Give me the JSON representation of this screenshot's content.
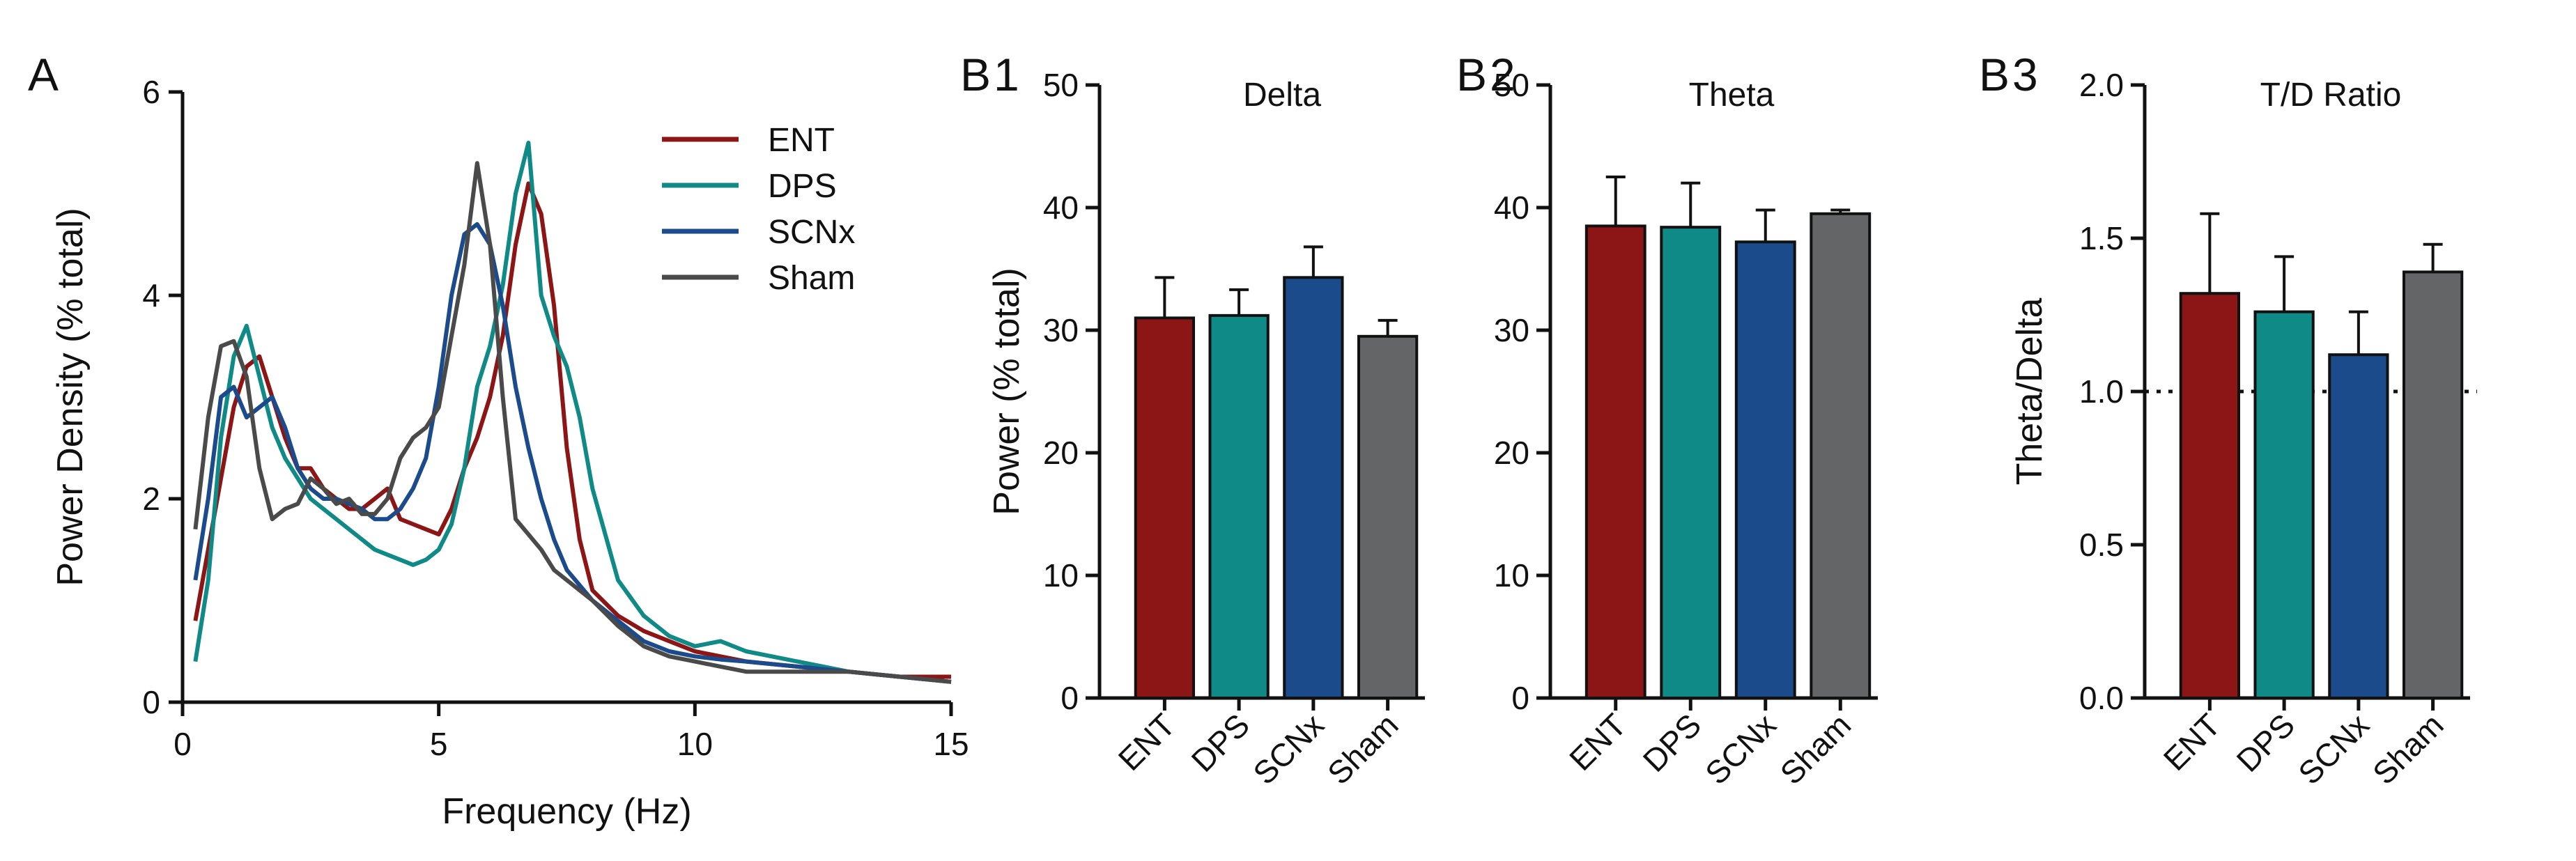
{
  "colors": {
    "ENT": "#8c1515",
    "DPS": "#0f8a86",
    "SCNx": "#1c4b8c",
    "Sham": "#4a4a4a",
    "ShamBar": "#636567"
  },
  "chart_data": [
    {
      "id": "A",
      "type": "line",
      "panel_label": "A",
      "xlabel": "Frequency (Hz)",
      "ylabel": "Power Density (% total)",
      "xlim": [
        0,
        15
      ],
      "ylim": [
        0,
        6
      ],
      "xticks": [
        0,
        5,
        10,
        15
      ],
      "yticks": [
        0,
        2,
        4,
        6
      ],
      "legend_position": "top-right",
      "series": [
        {
          "name": "ENT",
          "x": [
            0.25,
            0.5,
            0.75,
            1.0,
            1.25,
            1.5,
            1.75,
            2.0,
            2.25,
            2.5,
            2.75,
            3.0,
            3.25,
            3.5,
            3.75,
            4.0,
            4.25,
            4.5,
            4.75,
            5.0,
            5.25,
            5.5,
            5.75,
            6.0,
            6.25,
            6.5,
            6.75,
            7.0,
            7.25,
            7.5,
            7.75,
            8.0,
            8.5,
            9.0,
            9.5,
            10.0,
            10.5,
            11.0,
            12.0,
            13.0,
            14.0,
            15.0
          ],
          "y": [
            0.8,
            1.5,
            2.2,
            2.9,
            3.3,
            3.4,
            3.0,
            2.6,
            2.3,
            2.3,
            2.1,
            2.0,
            1.9,
            1.9,
            2.0,
            2.1,
            1.8,
            1.75,
            1.7,
            1.65,
            1.9,
            2.3,
            2.6,
            3.0,
            3.6,
            4.5,
            5.1,
            4.8,
            3.9,
            2.5,
            1.6,
            1.1,
            0.85,
            0.7,
            0.6,
            0.5,
            0.45,
            0.4,
            0.35,
            0.3,
            0.25,
            0.25
          ]
        },
        {
          "name": "DPS",
          "x": [
            0.25,
            0.5,
            0.75,
            1.0,
            1.25,
            1.5,
            1.75,
            2.0,
            2.25,
            2.5,
            2.75,
            3.0,
            3.25,
            3.5,
            3.75,
            4.0,
            4.25,
            4.5,
            4.75,
            5.0,
            5.25,
            5.5,
            5.75,
            6.0,
            6.25,
            6.5,
            6.75,
            7.0,
            7.25,
            7.5,
            7.75,
            8.0,
            8.5,
            9.0,
            9.5,
            10.0,
            10.5,
            11.0,
            12.0,
            13.0,
            14.0,
            15.0
          ],
          "y": [
            0.4,
            1.2,
            2.6,
            3.4,
            3.7,
            3.2,
            2.7,
            2.4,
            2.2,
            2.0,
            1.9,
            1.8,
            1.7,
            1.6,
            1.5,
            1.45,
            1.4,
            1.35,
            1.4,
            1.5,
            1.75,
            2.3,
            3.1,
            3.5,
            4.1,
            5.0,
            5.5,
            4.0,
            3.6,
            3.3,
            2.8,
            2.1,
            1.2,
            0.85,
            0.65,
            0.55,
            0.6,
            0.5,
            0.4,
            0.3,
            0.25,
            0.2
          ]
        },
        {
          "name": "SCNx",
          "x": [
            0.25,
            0.5,
            0.75,
            1.0,
            1.25,
            1.5,
            1.75,
            2.0,
            2.25,
            2.5,
            2.75,
            3.0,
            3.25,
            3.5,
            3.75,
            4.0,
            4.25,
            4.5,
            4.75,
            5.0,
            5.25,
            5.5,
            5.75,
            6.0,
            6.25,
            6.5,
            6.75,
            7.0,
            7.25,
            7.5,
            7.75,
            8.0,
            8.5,
            9.0,
            9.5,
            10.0,
            10.5,
            11.0,
            12.0,
            13.0,
            14.0,
            15.0
          ],
          "y": [
            1.2,
            2.0,
            3.0,
            3.1,
            2.8,
            2.9,
            3.0,
            2.7,
            2.3,
            2.1,
            2.0,
            2.0,
            1.95,
            1.9,
            1.8,
            1.8,
            1.9,
            2.1,
            2.4,
            3.1,
            4.0,
            4.6,
            4.7,
            4.5,
            3.9,
            3.1,
            2.5,
            2.0,
            1.6,
            1.3,
            1.15,
            1.0,
            0.8,
            0.6,
            0.5,
            0.45,
            0.42,
            0.4,
            0.35,
            0.3,
            0.25,
            0.2
          ]
        },
        {
          "name": "Sham",
          "x": [
            0.25,
            0.5,
            0.75,
            1.0,
            1.25,
            1.5,
            1.75,
            2.0,
            2.25,
            2.5,
            2.75,
            3.0,
            3.25,
            3.5,
            3.75,
            4.0,
            4.25,
            4.5,
            4.75,
            5.0,
            5.25,
            5.5,
            5.75,
            6.0,
            6.25,
            6.5,
            6.75,
            7.0,
            7.25,
            7.5,
            7.75,
            8.0,
            8.5,
            9.0,
            9.5,
            10.0,
            10.5,
            11.0,
            12.0,
            13.0,
            14.0,
            15.0
          ],
          "y": [
            1.7,
            2.8,
            3.5,
            3.55,
            3.2,
            2.3,
            1.8,
            1.9,
            1.95,
            2.2,
            2.1,
            1.95,
            2.0,
            1.85,
            1.85,
            2.0,
            2.4,
            2.6,
            2.7,
            2.9,
            3.6,
            4.3,
            5.3,
            4.5,
            3.0,
            1.8,
            1.65,
            1.5,
            1.3,
            1.2,
            1.1,
            1.0,
            0.75,
            0.55,
            0.45,
            0.4,
            0.35,
            0.3,
            0.3,
            0.3,
            0.25,
            0.2
          ]
        }
      ]
    },
    {
      "id": "B1",
      "type": "bar",
      "panel_label": "B",
      "panel_sub": "1",
      "title": "Delta",
      "ylabel": "Power (% total)",
      "ylim": [
        0,
        50
      ],
      "yticks": [
        0,
        10,
        20,
        30,
        40,
        50
      ],
      "categories": [
        "ENT",
        "DPS",
        "SCNx",
        "Sham"
      ],
      "values": [
        31.0,
        31.2,
        34.3,
        29.5
      ],
      "errors": [
        3.3,
        2.1,
        2.5,
        1.3
      ]
    },
    {
      "id": "B2",
      "type": "bar",
      "panel_label": "B",
      "panel_sub": "2",
      "title": "Theta",
      "ylim": [
        0,
        50
      ],
      "yticks": [
        0,
        10,
        20,
        30,
        40,
        50
      ],
      "categories": [
        "ENT",
        "DPS",
        "SCNx",
        "Sham"
      ],
      "values": [
        38.5,
        38.4,
        37.2,
        39.5
      ],
      "errors": [
        4.0,
        3.6,
        2.6,
        0.3
      ]
    },
    {
      "id": "B3",
      "type": "bar",
      "panel_label": "B",
      "panel_sub": "3",
      "title": "T/D Ratio",
      "ylabel": "Theta/Delta",
      "ylim": [
        0,
        2.0
      ],
      "yticks": [
        "0.0",
        "0.5",
        "1.0",
        "1.5",
        "2.0"
      ],
      "categories": [
        "ENT",
        "DPS",
        "SCNx",
        "Sham"
      ],
      "values": [
        1.32,
        1.26,
        1.12,
        1.39
      ],
      "errors": [
        0.26,
        0.18,
        0.14,
        0.09
      ],
      "reference_line": 1.0
    }
  ]
}
